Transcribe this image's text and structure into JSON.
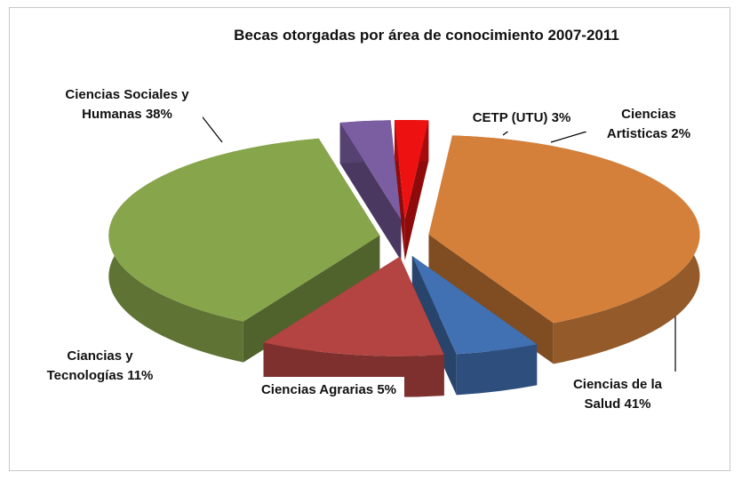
{
  "chart_data": {
    "type": "pie3d",
    "title": "Becas otorgadas por área de conocimiento 2007-2011",
    "categories": [
      "CETP (UTU)",
      "Ciencias Artisticas",
      "Ciencias de la Salud",
      "Ciencias Agrarias",
      "Ciancias y Tecnologías",
      "Ciencias Sociales y Humanas"
    ],
    "values": [
      3,
      2,
      41,
      5,
      11,
      38
    ],
    "value_labels": [
      "3%",
      "2%",
      "41%",
      "5%",
      "11%",
      "38%"
    ],
    "colors": [
      "#7b5ea2",
      "#ee1111",
      "#d5803a",
      "#4271b3",
      "#b44442",
      "#87a54b"
    ]
  }
}
